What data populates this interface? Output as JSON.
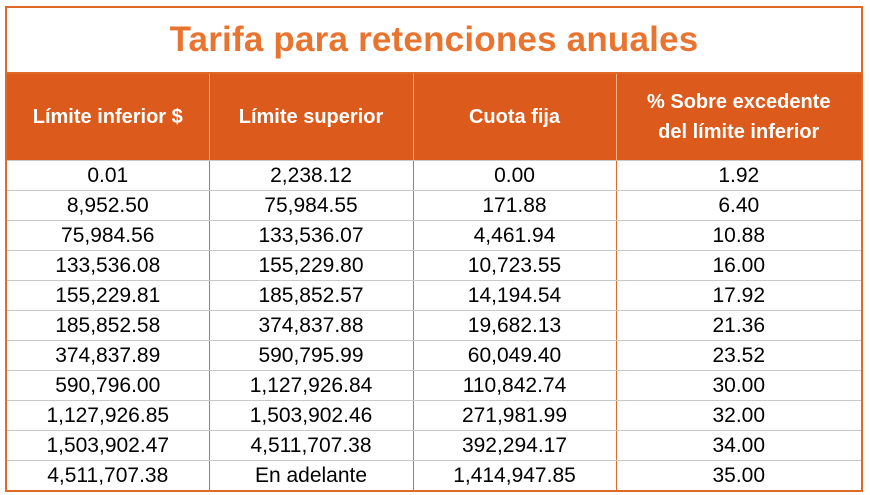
{
  "title": "Tarifa para retenciones anuales",
  "headers": {
    "lower": "Límite inferior $",
    "upper": "Límite superior",
    "fixed": "Cuota fija",
    "percent_line1": "% Sobre excedente",
    "percent_line2": "del límite inferior"
  },
  "rows": [
    [
      "0.01",
      "2,238.12",
      "0.00",
      "1.92"
    ],
    [
      "8,952.50",
      "75,984.55",
      "171.88",
      "6.40"
    ],
    [
      "75,984.56",
      "133,536.07",
      "4,461.94",
      "10.88"
    ],
    [
      "133,536.08",
      "155,229.80",
      "10,723.55",
      "16.00"
    ],
    [
      "155,229.81",
      "185,852.57",
      "14,194.54",
      "17.92"
    ],
    [
      "185,852.58",
      "374,837.88",
      "19,682.13",
      "21.36"
    ],
    [
      "374,837.89",
      "590,795.99",
      "60,049.40",
      "23.52"
    ],
    [
      "590,796.00",
      "1,127,926.84",
      "110,842.74",
      "30.00"
    ],
    [
      "1,127,926.85",
      "1,503,902.46",
      "271,981.99",
      "32.00"
    ],
    [
      "1,503,902.47",
      "4,511,707.38",
      "392,294.17",
      "34.00"
    ],
    [
      "4,511,707.38",
      "En adelante",
      "1,414,947.85",
      "35.00"
    ]
  ],
  "colors": {
    "title_text": "#e9742f",
    "header_bg": "#dc5a1c",
    "border": "#e06a25"
  }
}
